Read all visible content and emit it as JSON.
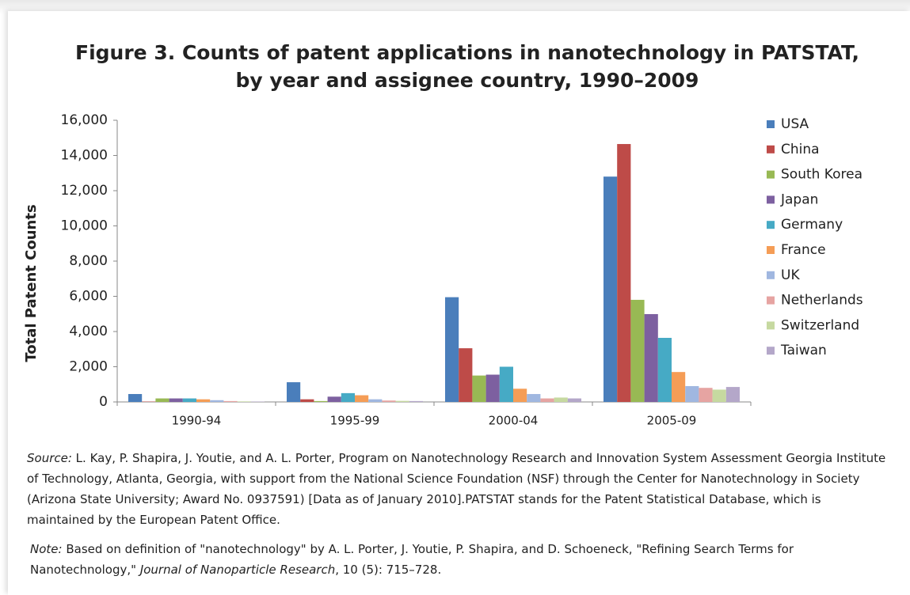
{
  "chart_data": {
    "type": "bar",
    "title": "Figure 3. Counts of patent applications in nanotechnology in PATSTAT,",
    "subtitle": "by year and assignee country, 1990–2009",
    "y_label": "Total Patent Counts",
    "categories": [
      "1990-94",
      "1995-99",
      "2000-04",
      "2005-09"
    ],
    "series": [
      {
        "name": "USA",
        "color": "#4a7ebb",
        "values": [
          450,
          1120,
          5950,
          12800
        ]
      },
      {
        "name": "China",
        "color": "#be4b48",
        "values": [
          20,
          150,
          3050,
          14650
        ]
      },
      {
        "name": "South Korea",
        "color": "#98b954",
        "values": [
          200,
          50,
          1500,
          5800
        ]
      },
      {
        "name": "Japan",
        "color": "#7d60a0",
        "values": [
          200,
          300,
          1550,
          4990
        ]
      },
      {
        "name": "Germany",
        "color": "#46aac5",
        "values": [
          200,
          500,
          2000,
          3640
        ]
      },
      {
        "name": "France",
        "color": "#f59d56",
        "values": [
          150,
          380,
          750,
          1700
        ]
      },
      {
        "name": "UK",
        "color": "#a0b7e0",
        "values": [
          100,
          150,
          450,
          900
        ]
      },
      {
        "name": "Netherlands",
        "color": "#e6a4a2",
        "values": [
          50,
          80,
          200,
          800
        ]
      },
      {
        "name": "Switzerland",
        "color": "#c6d9a0",
        "values": [
          30,
          60,
          250,
          700
        ]
      },
      {
        "name": "Taiwan",
        "color": "#b4a7c9",
        "values": [
          20,
          50,
          200,
          850
        ]
      }
    ],
    "ylim": [
      0,
      16000
    ],
    "yticks": [
      0,
      {
        "value": 2000,
        "label": "2,000"
      },
      {
        "value": 4000,
        "label": "4,000"
      },
      {
        "value": 6000,
        "label": "6,000"
      },
      {
        "value": 8000,
        "label": "8,000"
      },
      {
        "value": 10000,
        "label": "10,000"
      },
      {
        "value": 12000,
        "label": "12,000"
      },
      {
        "value": 14000,
        "label": "14,000"
      },
      {
        "value": 16000,
        "label": "16,000"
      }
    ],
    "grid": false,
    "legend": "right"
  },
  "source": {
    "label": "Source:",
    "text": " L. Kay, P. Shapira, J. Youtie, and A. L. Porter, Program on Nanotechnology Research and Innovation System Assessment Georgia Institute of Technology, Atlanta, Georgia, with support from the National Science Foundation (NSF) through the Center for Nanotechnology in Society (Arizona State University; Award No. 0937591) [Data as of January 2010].PATSTAT stands for the Patent Statistical Database, which is maintained by the European Patent Office."
  },
  "note": {
    "label": "Note:",
    "text": " Based on definition of \"nanotechnology\"  by A. L. Porter, J. Youtie, P. Shapira, and D. Schoeneck, \"Refining Search Terms for Nanotechnology,\" ",
    "journal": "Journal of Nanoparticle Research",
    "citation": ", 10 (5): 715–728."
  }
}
